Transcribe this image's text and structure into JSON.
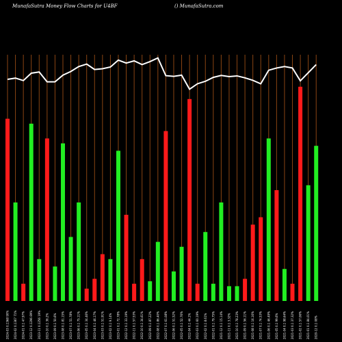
{
  "header": {
    "title": "MunafaSutra  Money Flow  Charts for U4BF",
    "credit": "() MunafaSutra.com"
  },
  "colors": {
    "background": "#000000",
    "gridline": "#8B4513",
    "up": "#22ee22",
    "down": "#ff1a1a",
    "line": "#ffffff"
  },
  "chart_data": {
    "type": "bar",
    "title": "MunafaSutra  Money Flow  Charts for U4BF",
    "ylim": [
      0,
      100
    ],
    "grid": true,
    "categories": [
      "2024-03 0.1368 90%",
      "2024-02 0.1367 71%",
      "2024-01 0.1 47.97%",
      "2023-12 0.1296 89%",
      "2023-11 0.1256 19%",
      "2023-10 0.1 36.2%",
      "2023-09 0.1 50.6%",
      "2023-08 0.1 81.15%",
      "2023-07 0.1 51.78%",
      "2023-06 0.1 75.11%",
      "2023-05 0.1 34.46%",
      "2023-04 0.1 46.17%",
      "2023-03 0.1 51.91%",
      "2023-02 0.1 9.14%",
      "2023-01 0.1 72.78%",
      "2022-12 0.1 33.19%",
      "2022-11 0.1 57.53%",
      "2022-10 0.1 34.61%",
      "2022-09 0.1 87.22%",
      "2022-08 0.1 86.40%",
      "2022-07 0.1 61.08%",
      "2022-06 0.1 51.52%",
      "2022-05 0.1 52.76%",
      "2022-04 0.1 44.1%",
      "2022-03 0.1 60.19%",
      "2022-02 0.1 8.61%",
      "2022-01 0.1 79.75%",
      "2021-12 0.1 15.14%",
      "2021-11 0.1 3.32%",
      "2021-10 0.1 78.23%",
      "2021-09 0.1 56.11%",
      "2021-08 0.1 16.16%",
      "2021-07 0.1 74.53%",
      "2021-06 0.1 46.49%",
      "2021-05 0.1 99.6%",
      "2021-04 0.1 98.64%",
      "2021-03 0.1 37.32%",
      "2021-02 0.1 57.06%",
      "2021-01 0.1 84.01%",
      "2020-12 0.1 08%"
    ],
    "bars": [
      {
        "value": 74,
        "dir": "down"
      },
      {
        "value": 40,
        "dir": "up"
      },
      {
        "value": 7,
        "dir": "down"
      },
      {
        "value": 72,
        "dir": "up"
      },
      {
        "value": 17,
        "dir": "up"
      },
      {
        "value": 66,
        "dir": "down"
      },
      {
        "value": 14,
        "dir": "up"
      },
      {
        "value": 64,
        "dir": "up"
      },
      {
        "value": 26,
        "dir": "up"
      },
      {
        "value": 40,
        "dir": "up"
      },
      {
        "value": 5,
        "dir": "down"
      },
      {
        "value": 9,
        "dir": "down"
      },
      {
        "value": 19,
        "dir": "down"
      },
      {
        "value": 17,
        "dir": "up"
      },
      {
        "value": 61,
        "dir": "up"
      },
      {
        "value": 35,
        "dir": "down"
      },
      {
        "value": 7,
        "dir": "down"
      },
      {
        "value": 17,
        "dir": "down"
      },
      {
        "value": 8,
        "dir": "up"
      },
      {
        "value": 24,
        "dir": "up"
      },
      {
        "value": 69,
        "dir": "down"
      },
      {
        "value": 12,
        "dir": "up"
      },
      {
        "value": 22,
        "dir": "up"
      },
      {
        "value": 82,
        "dir": "down"
      },
      {
        "value": 7,
        "dir": "down"
      },
      {
        "value": 28,
        "dir": "up"
      },
      {
        "value": 7,
        "dir": "up"
      },
      {
        "value": 40,
        "dir": "up"
      },
      {
        "value": 6,
        "dir": "up"
      },
      {
        "value": 6,
        "dir": "up"
      },
      {
        "value": 9,
        "dir": "down"
      },
      {
        "value": 31,
        "dir": "down"
      },
      {
        "value": 34,
        "dir": "down"
      },
      {
        "value": 66,
        "dir": "up"
      },
      {
        "value": 45,
        "dir": "down"
      },
      {
        "value": 13,
        "dir": "up"
      },
      {
        "value": 7,
        "dir": "down"
      },
      {
        "value": 87,
        "dir": "down"
      },
      {
        "value": 47,
        "dir": "up"
      },
      {
        "value": 63,
        "dir": "up"
      }
    ],
    "line": [
      90,
      90.5,
      89.5,
      92.5,
      93,
      89,
      89,
      91.7,
      93.2,
      95.2,
      96.2,
      94,
      94.3,
      95,
      97.8,
      96.6,
      97.5,
      96,
      97.2,
      98.7,
      91.5,
      91.2,
      91.7,
      86,
      88.2,
      89.2,
      90.8,
      91.6,
      91.1,
      91.4,
      90.6,
      89.6,
      88.2,
      93.7,
      94.6,
      95.2,
      94.6,
      89.4,
      92.7,
      96
    ]
  }
}
